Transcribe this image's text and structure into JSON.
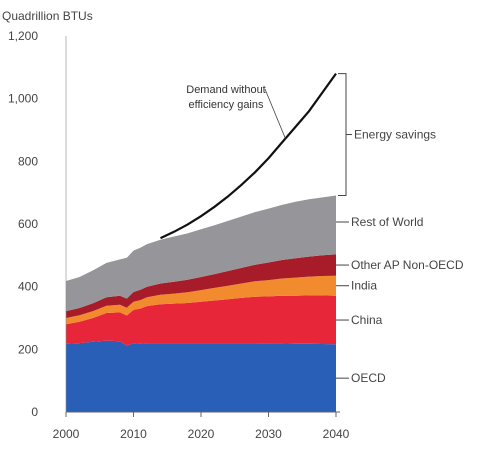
{
  "chart_data": {
    "type": "area",
    "ylabel": "Quadrillion BTUs",
    "x": [
      2000,
      2002,
      2004,
      2006,
      2008,
      2009,
      2010,
      2011,
      2012,
      2014,
      2016,
      2018,
      2020,
      2022,
      2024,
      2026,
      2028,
      2030,
      2032,
      2034,
      2036,
      2038,
      2040
    ],
    "xticks": [
      "2000",
      "2010",
      "2020",
      "2030",
      "2040"
    ],
    "yticks": [
      "0",
      "200",
      "400",
      "600",
      "800",
      "1,000",
      "1,200"
    ],
    "xlim": [
      2000,
      2040
    ],
    "ylim": [
      0,
      1200
    ],
    "stacked": true,
    "series": [
      {
        "name": "OECD",
        "color": "#2a5fb8",
        "values": [
          218,
          220,
          224,
          228,
          226,
          212,
          220,
          218,
          220,
          220,
          220,
          220,
          220,
          220,
          220,
          220,
          220,
          219,
          219,
          218,
          218,
          217,
          216
        ]
      },
      {
        "name": "China",
        "color": "#e8263a",
        "values": [
          62,
          68,
          76,
          88,
          92,
          96,
          106,
          112,
          118,
          124,
          126,
          128,
          132,
          136,
          140,
          144,
          148,
          150,
          152,
          153,
          154,
          155,
          155
        ]
      },
      {
        "name": "India",
        "color": "#f28a2e",
        "values": [
          20,
          21,
          22,
          23,
          24,
          25,
          26,
          27,
          28,
          30,
          32,
          34,
          37,
          40,
          43,
          46,
          49,
          52,
          55,
          58,
          60,
          62,
          64
        ]
      },
      {
        "name": "Other AP Non-OECD",
        "color": "#a81c2a",
        "values": [
          22,
          23,
          25,
          27,
          29,
          29,
          31,
          33,
          34,
          36,
          38,
          40,
          42,
          44,
          47,
          50,
          53,
          56,
          59,
          62,
          64,
          66,
          68
        ]
      },
      {
        "name": "Rest of World",
        "color": "#96969a",
        "values": [
          96,
          99,
          105,
          110,
          116,
          130,
          132,
          134,
          136,
          140,
          144,
          148,
          152,
          156,
          160,
          164,
          168,
          172,
          176,
          180,
          183,
          185,
          188
        ]
      }
    ],
    "demand_line": {
      "name": "Demand without efficiency gains",
      "x": [
        2014,
        2016,
        2018,
        2020,
        2022,
        2024,
        2026,
        2028,
        2030,
        2032,
        2034,
        2036,
        2038,
        2040
      ],
      "values": [
        555,
        575,
        598,
        625,
        655,
        688,
        725,
        765,
        810,
        860,
        910,
        960,
        1020,
        1080
      ]
    },
    "annotations": {
      "demand": [
        "Demand without",
        "efficiency gains"
      ],
      "savings": "Energy savings"
    }
  }
}
